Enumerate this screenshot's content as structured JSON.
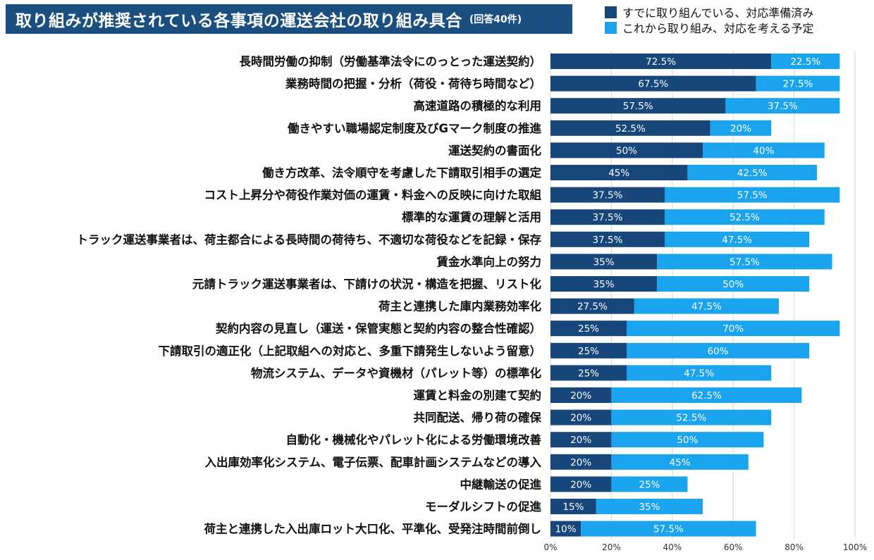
{
  "title": "取り組みが推奨されている各事項の運送会社の取り組み具合",
  "subtitle": "(回答40件)",
  "colors": {
    "done": "#16467a",
    "planned": "#1aa4ee",
    "title_bg": "#1b4f7f",
    "grid": "#d6d6d6"
  },
  "chart_data": {
    "type": "bar",
    "orientation": "horizontal",
    "stacked": true,
    "xlim": [
      0,
      100
    ],
    "xticks": [
      "0%",
      "20%",
      "40%",
      "60%",
      "80%",
      "100%"
    ],
    "grid": true,
    "legend_position": "top-right",
    "categories": [
      "長時間労働の抑制（労働基準法令にのっとった運送契約）",
      "業務時間の把握・分析（荷役・荷待ち時間など）",
      "高速道路の積極的な利用",
      "働きやすい職場認定制度及びGマーク制度の推進",
      "運送契約の書面化",
      "働き方改革、法令順守を考慮した下請取引相手の選定",
      "コスト上昇分や荷役作業対価の運賃・料金への反映に向けた取組",
      "標準的な運賃の理解と活用",
      "トラック運送事業者は、荷主都合による長時間の荷待ち、不適切な荷役などを記録・保存",
      "賃金水準向上の努力",
      "元請トラック運送事業者は、下請けの状況・構造を把握、リスト化",
      "荷主と連携した庫内業務効率化",
      "契約内容の見直し（運送・保管実態と契約内容の整合性確認）",
      "下請取引の適正化（上記取組への対応と、多重下請発生しないよう留意）",
      "物流システム、データや資機材（パレット等）の標準化",
      "運賃と料金の別建て契約",
      "共同配送、帰り荷の確保",
      "自動化・機械化やパレット化による労働環境改善",
      "入出庫効率化システム、電子伝票、配車計画システムなどの導入",
      "中継輸送の促進",
      "モーダルシフトの促進",
      "荷主と連携した入出庫ロット大口化、平準化、受発注時間前倒し"
    ],
    "series": [
      {
        "name": "すでに取り組んでいる、対応準備済み",
        "values": [
          72.5,
          67.5,
          57.5,
          52.5,
          50,
          45,
          37.5,
          37.5,
          37.5,
          35,
          35,
          27.5,
          25,
          25,
          25,
          20,
          20,
          20,
          20,
          20,
          15,
          10
        ],
        "labels": [
          "72.5%",
          "67.5%",
          "57.5%",
          "52.5%",
          "50%",
          "45%",
          "37.5%",
          "37.5%",
          "37.5%",
          "35%",
          "35%",
          "27.5%",
          "25%",
          "25%",
          "25%",
          "20%",
          "20%",
          "20%",
          "20%",
          "20%",
          "15%",
          "10%"
        ]
      },
      {
        "name": "これから取り組み、対応を考える予定",
        "values": [
          22.5,
          27.5,
          37.5,
          20,
          40,
          42.5,
          57.5,
          52.5,
          47.5,
          57.5,
          50,
          47.5,
          70,
          60,
          47.5,
          62.5,
          52.5,
          50,
          45,
          25,
          35,
          57.5
        ],
        "labels": [
          "22.5%",
          "27.5%",
          "37.5%",
          "20%",
          "40%",
          "42.5%",
          "57.5%",
          "52.5%",
          "47.5%",
          "57.5%",
          "50%",
          "47.5%",
          "70%",
          "60%",
          "47.5%",
          "62.5%",
          "52.5%",
          "50%",
          "45%",
          "25%",
          "35%",
          "57.5%"
        ]
      }
    ]
  }
}
